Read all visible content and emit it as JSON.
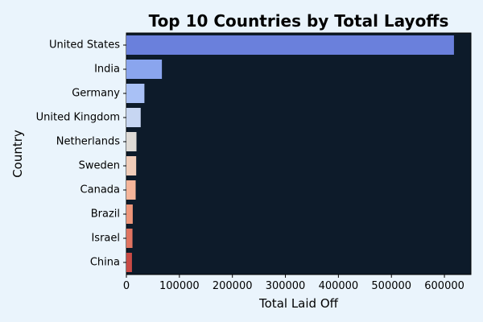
{
  "chart_data": {
    "type": "bar",
    "orientation": "horizontal",
    "title": "Top 10 Countries by Total Layoffs",
    "xlabel": "Total Laid Off",
    "ylabel": "Country",
    "categories": [
      "United States",
      "India",
      "Germany",
      "United Kingdom",
      "Netherlands",
      "Sweden",
      "Canada",
      "Brazil",
      "Israel",
      "China"
    ],
    "values": [
      618000,
      67000,
      34000,
      27000,
      19000,
      18500,
      17500,
      12000,
      11500,
      10500
    ],
    "xlim": [
      0,
      650000
    ],
    "xticks": [
      0,
      100000,
      200000,
      300000,
      400000,
      500000,
      600000
    ],
    "grid": false,
    "colors": {
      "figure_background": "#eaf4fc",
      "plot_background": "#0d1b2a",
      "bars": [
        "#6a80dc",
        "#8aa5ee",
        "#a9c1f6",
        "#c7d6f2",
        "#dfdbd6",
        "#f1cdb9",
        "#f5b59a",
        "#ee967a",
        "#e07461",
        "#c94a45"
      ]
    }
  }
}
